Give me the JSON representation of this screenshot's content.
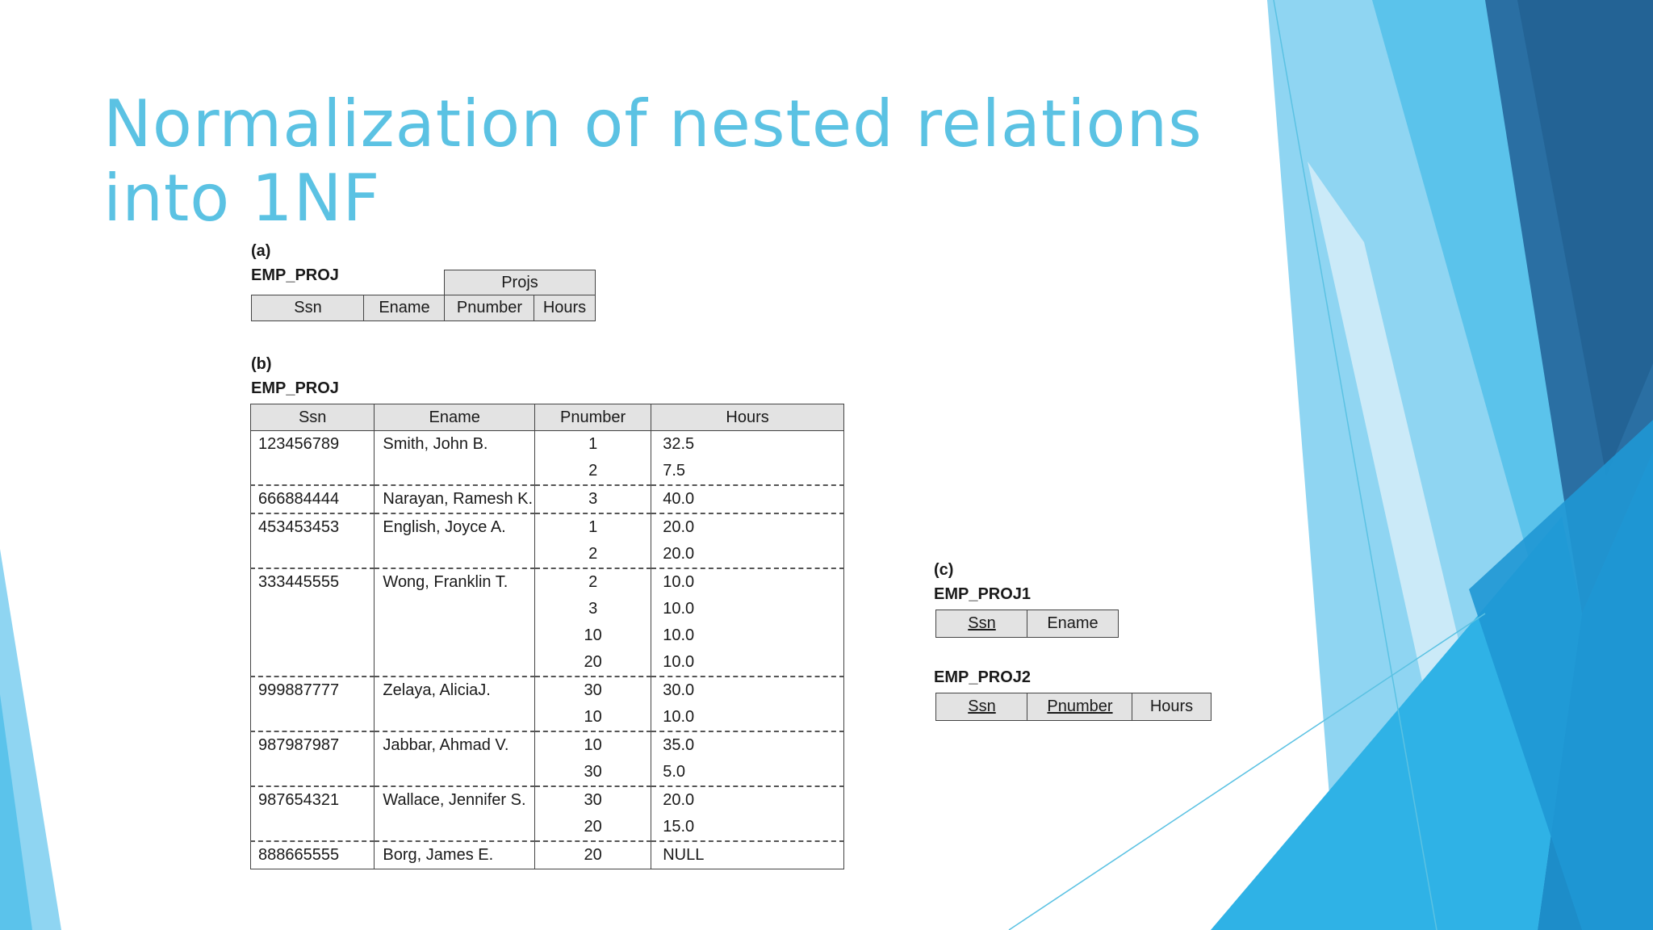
{
  "slide": {
    "title": "Normalization of nested relations into 1NF"
  },
  "part_a": {
    "tag": "(a)",
    "relation": "EMP_PROJ",
    "group_label": "Projs",
    "columns": [
      "Ssn",
      "Ename",
      "Pnumber",
      "Hours"
    ]
  },
  "part_b": {
    "tag": "(b)",
    "relation": "EMP_PROJ",
    "columns": [
      "Ssn",
      "Ename",
      "Pnumber",
      "Hours"
    ],
    "rows": [
      {
        "ssn": "123456789",
        "ename": "Smith, John B.",
        "projects": [
          {
            "pnumber": "1",
            "hours": "32.5"
          },
          {
            "pnumber": "2",
            "hours": "7.5"
          }
        ]
      },
      {
        "ssn": "666884444",
        "ename": "Narayan, Ramesh K.",
        "projects": [
          {
            "pnumber": "3",
            "hours": "40.0"
          }
        ]
      },
      {
        "ssn": "453453453",
        "ename": "English, Joyce A.",
        "projects": [
          {
            "pnumber": "1",
            "hours": "20.0"
          },
          {
            "pnumber": "2",
            "hours": "20.0"
          }
        ]
      },
      {
        "ssn": "333445555",
        "ename": "Wong, Franklin  T.",
        "projects": [
          {
            "pnumber": "2",
            "hours": "10.0"
          },
          {
            "pnumber": "3",
            "hours": "10.0"
          },
          {
            "pnumber": "10",
            "hours": "10.0"
          },
          {
            "pnumber": "20",
            "hours": "10.0"
          }
        ]
      },
      {
        "ssn": "999887777",
        "ename": "Zelaya, AliciaJ.",
        "projects": [
          {
            "pnumber": "30",
            "hours": "30.0"
          },
          {
            "pnumber": "10",
            "hours": "10.0"
          }
        ]
      },
      {
        "ssn": "987987987",
        "ename": "Jabbar, Ahmad V.",
        "projects": [
          {
            "pnumber": "10",
            "hours": "35.0"
          },
          {
            "pnumber": "30",
            "hours": "5.0"
          }
        ]
      },
      {
        "ssn": "987654321",
        "ename": "Wallace, Jennifer S.",
        "projects": [
          {
            "pnumber": "30",
            "hours": "20.0"
          },
          {
            "pnumber": "20",
            "hours": "15.0"
          }
        ]
      },
      {
        "ssn": "888665555",
        "ename": "Borg, James E.",
        "projects": [
          {
            "pnumber": "20",
            "hours": "NULL"
          }
        ]
      }
    ]
  },
  "part_c": {
    "tag": "(c)",
    "relation1": "EMP_PROJ1",
    "relation1_columns": [
      "Ssn",
      "Ename"
    ],
    "relation2": "EMP_PROJ2",
    "relation2_columns": [
      "Ssn",
      "Pnumber",
      "Hours"
    ]
  },
  "theme": {
    "title_color": "#5bc2e3",
    "accent_dark": "#2a6fa3",
    "accent_light": "#7fd0f0"
  }
}
